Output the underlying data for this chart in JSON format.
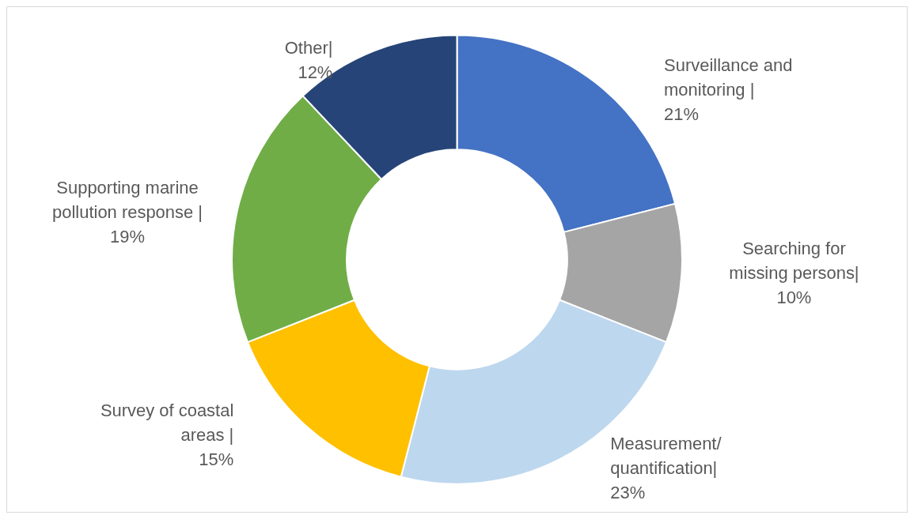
{
  "chart_data": {
    "type": "donut",
    "categories": [
      "Surveillance and monitoring |",
      "Searching for missing persons|",
      "Measurement/ quantification|",
      "Survey of coastal areas |",
      "Supporting marine pollution response |",
      "Other|"
    ],
    "values": [
      21,
      10,
      23,
      15,
      19,
      12
    ],
    "value_labels": [
      "21%",
      "10%",
      "23%",
      "15%",
      "19%",
      "12%"
    ],
    "colors": [
      "#4472c4",
      "#a5a5a5",
      "#bdd7ee",
      "#ffc000",
      "#70ad47",
      "#264478"
    ],
    "legend": false
  }
}
